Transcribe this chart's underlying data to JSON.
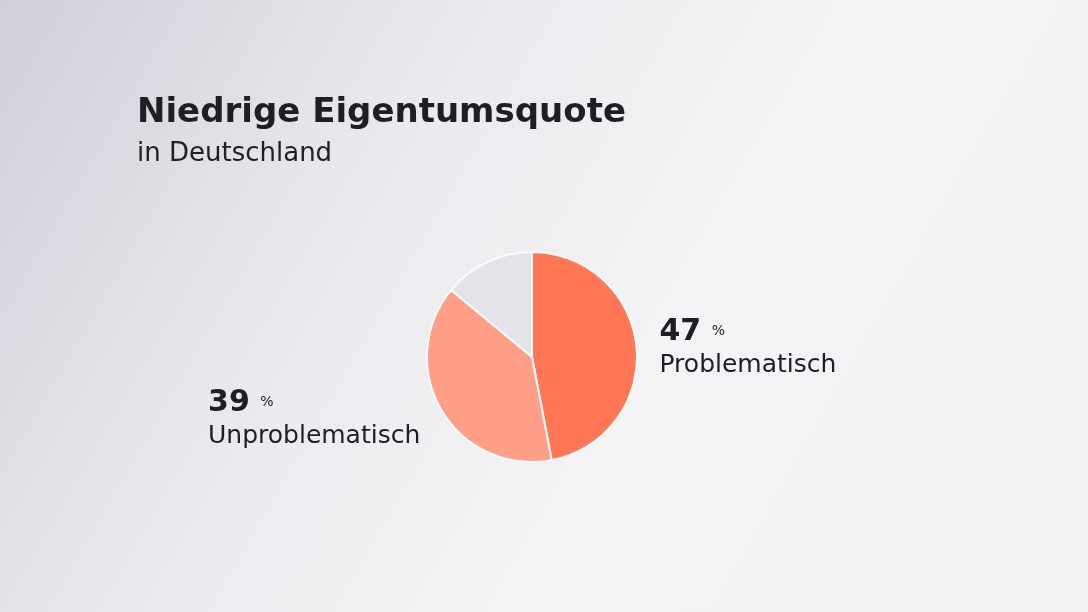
{
  "chart_data": {
    "type": "pie",
    "title": "Niedrige Eigentumsquote",
    "subtitle": "in Deutschland",
    "categories": [
      "Problematisch",
      "Unproblematisch",
      null
    ],
    "values": [
      47,
      39,
      14
    ],
    "value_labels": [
      "47 %",
      "39 %",
      null
    ],
    "colors": [
      "#ff7755",
      "#ff9f88",
      "#e3e3e9"
    ],
    "legend": false
  }
}
